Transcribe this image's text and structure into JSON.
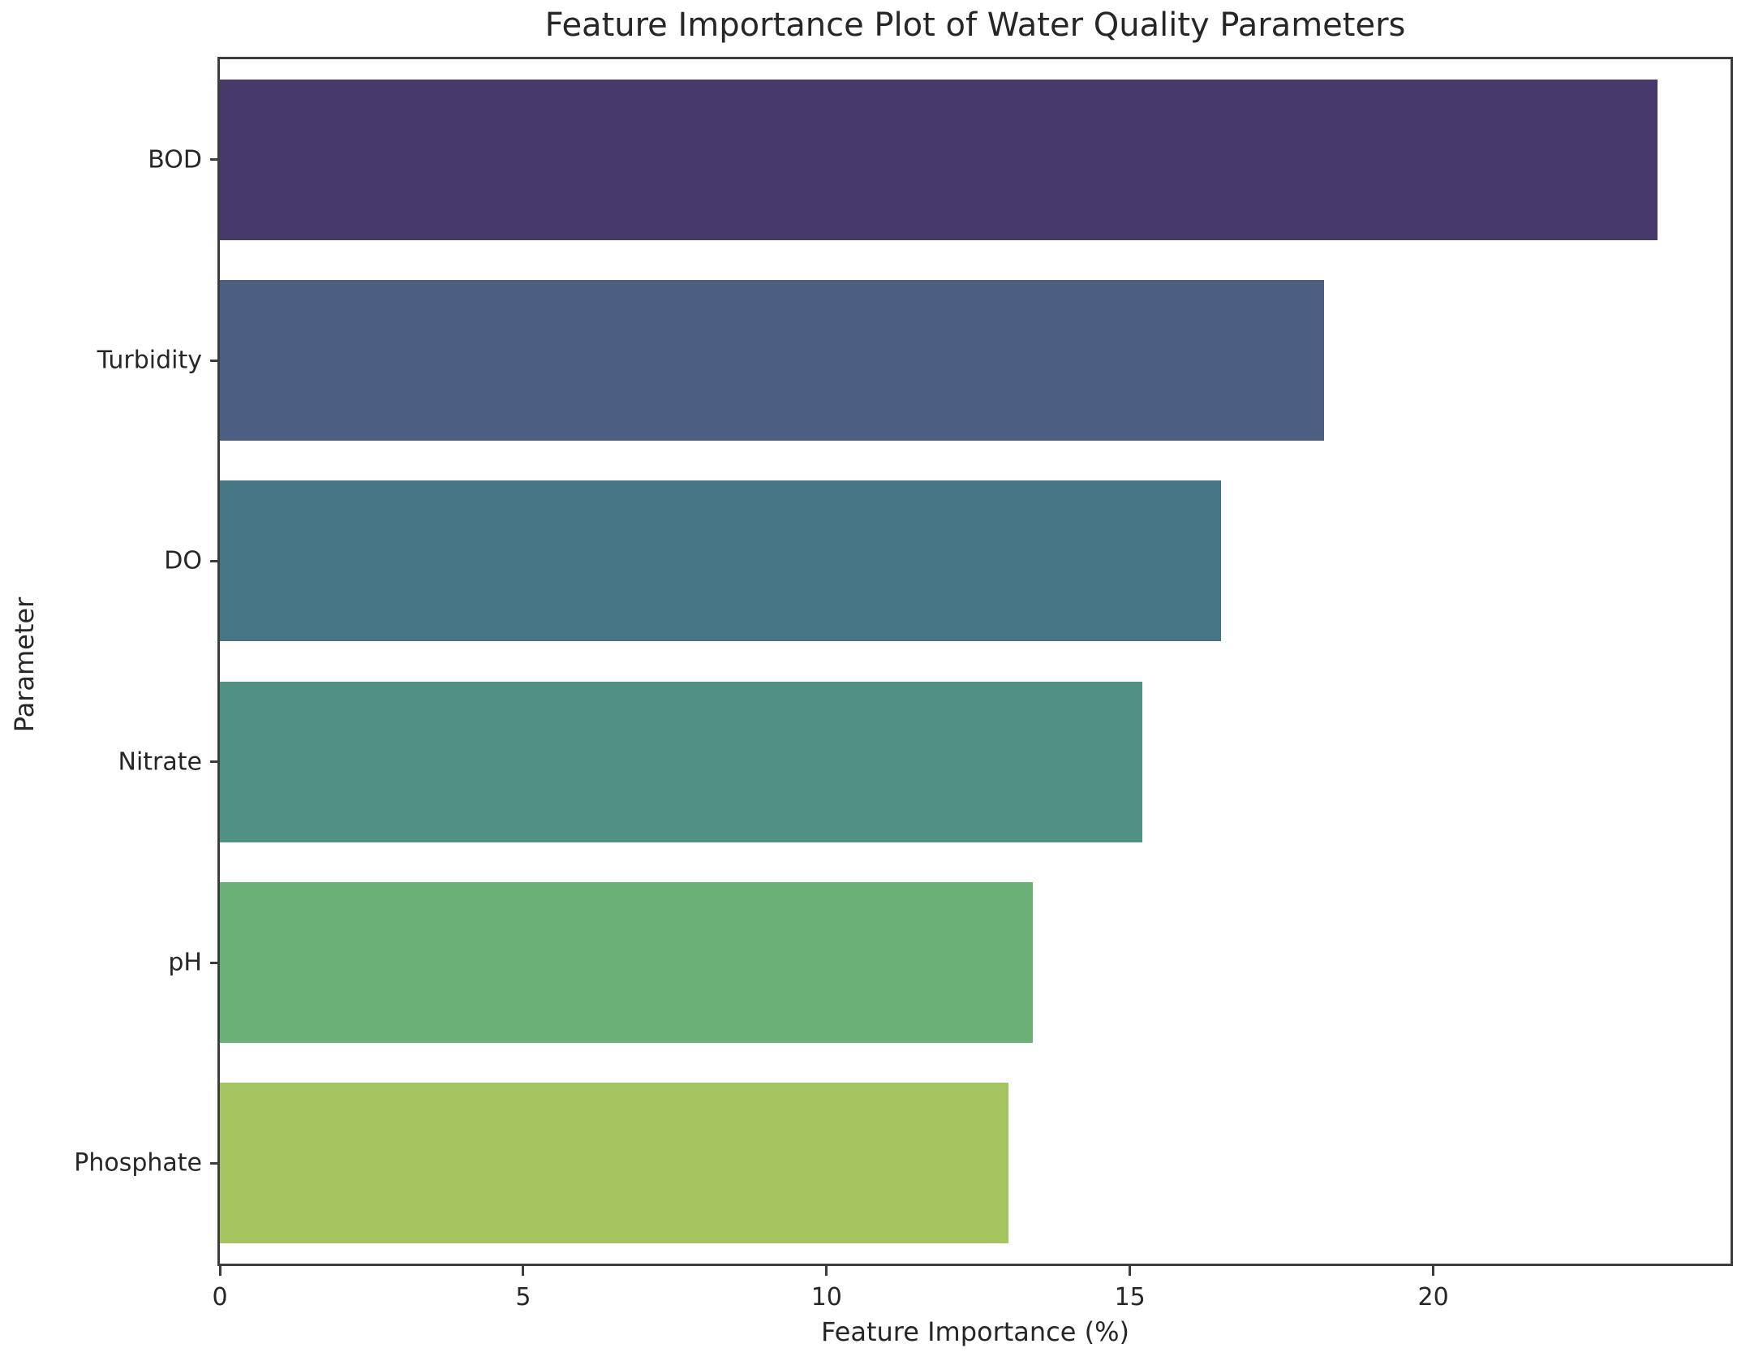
{
  "chart_data": {
    "type": "bar",
    "orientation": "horizontal",
    "title": "Feature Importance Plot of Water Quality Parameters",
    "xlabel": "Feature Importance (%)",
    "ylabel": "Parameter",
    "categories": [
      "BOD",
      "Turbidity",
      "DO",
      "Nitrate",
      "pH",
      "Phosphate"
    ],
    "values": [
      23.7,
      18.2,
      16.5,
      15.2,
      13.4,
      13.0
    ],
    "bar_colors": [
      "#473a6b",
      "#4c5e82",
      "#467685",
      "#4f9182",
      "#6bb075",
      "#a3c45e"
    ],
    "xlim": [
      0,
      24.9
    ],
    "x_ticks": [
      0,
      5,
      10,
      15,
      20
    ],
    "bar_relative_height": 0.8,
    "grid": false,
    "legend": null,
    "palette_name": "viridis",
    "spine_color": "#3d3d3d",
    "text_color": "#262626",
    "background_color": "#ffffff"
  }
}
